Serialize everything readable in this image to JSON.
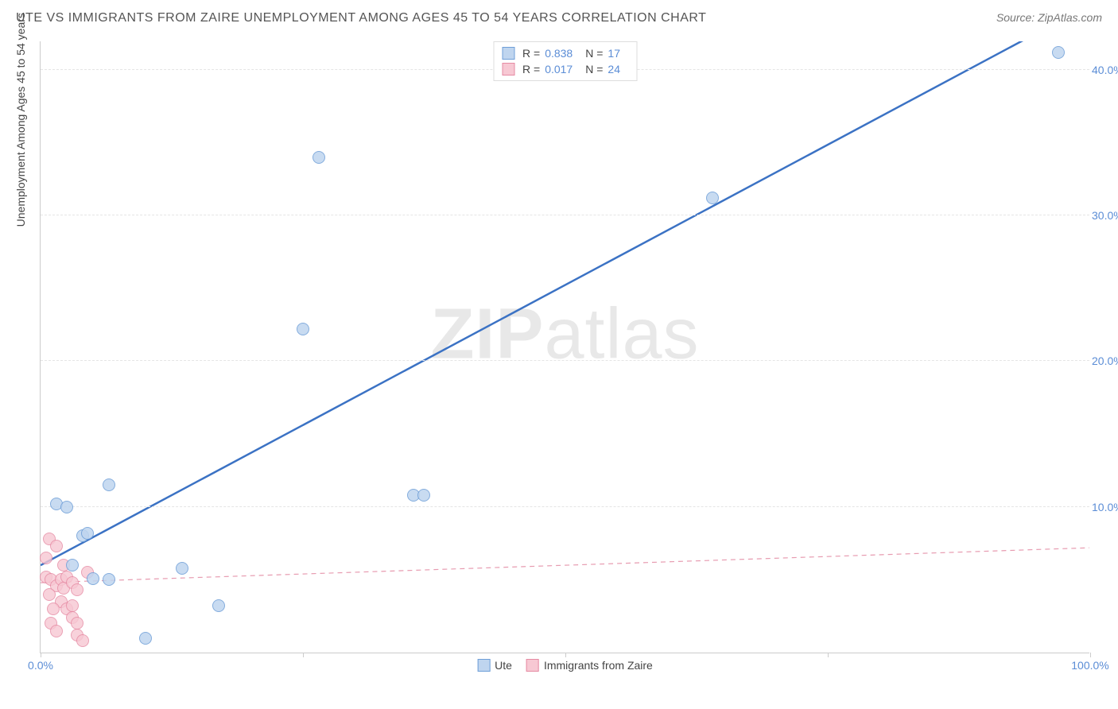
{
  "header": {
    "title": "UTE VS IMMIGRANTS FROM ZAIRE UNEMPLOYMENT AMONG AGES 45 TO 54 YEARS CORRELATION CHART",
    "source": "Source: ZipAtlas.com"
  },
  "watermark": {
    "part1": "ZIP",
    "part2": "atlas"
  },
  "axes": {
    "y_label": "Unemployment Among Ages 45 to 54 years",
    "xlim": [
      0,
      100
    ],
    "ylim": [
      0,
      42
    ],
    "y_ticks": [
      {
        "v": 10,
        "label": "10.0%"
      },
      {
        "v": 20,
        "label": "20.0%"
      },
      {
        "v": 30,
        "label": "30.0%"
      },
      {
        "v": 40,
        "label": "40.0%"
      }
    ],
    "x_ticks_major": [
      0,
      25,
      50,
      75,
      100
    ],
    "x_tick_labels": [
      {
        "v": 0,
        "label": "0.0%"
      },
      {
        "v": 100,
        "label": "100.0%"
      }
    ],
    "tick_color": "#5b8dd6",
    "grid_color": "#e5e5e5"
  },
  "series": {
    "blue": {
      "name": "Ute",
      "marker_fill": "#bfd5ef",
      "marker_stroke": "#6f9fd8",
      "marker_radius": 8,
      "marker_opacity": 0.85,
      "R": "0.838",
      "N": "17",
      "trend": {
        "x1": 0,
        "y1": 6.0,
        "x2": 100,
        "y2": 44.5,
        "color": "#3b72c4",
        "width": 2.5,
        "dash": "none"
      },
      "points": [
        {
          "x": 1.5,
          "y": 10.2
        },
        {
          "x": 2.5,
          "y": 10.0
        },
        {
          "x": 4.0,
          "y": 8.0
        },
        {
          "x": 4.5,
          "y": 8.2
        },
        {
          "x": 6.5,
          "y": 11.5
        },
        {
          "x": 3.0,
          "y": 6.0
        },
        {
          "x": 5.0,
          "y": 5.1
        },
        {
          "x": 6.5,
          "y": 5.0
        },
        {
          "x": 13.5,
          "y": 5.8
        },
        {
          "x": 10.0,
          "y": 1.0
        },
        {
          "x": 17.0,
          "y": 3.2
        },
        {
          "x": 25.0,
          "y": 22.2
        },
        {
          "x": 26.5,
          "y": 34.0
        },
        {
          "x": 35.5,
          "y": 10.8
        },
        {
          "x": 36.5,
          "y": 10.8
        },
        {
          "x": 64.0,
          "y": 31.2
        },
        {
          "x": 97.0,
          "y": 41.2
        }
      ]
    },
    "pink": {
      "name": "Immigrants from Zaire",
      "marker_fill": "#f7c8d3",
      "marker_stroke": "#e68aa3",
      "marker_radius": 8,
      "marker_opacity": 0.8,
      "R": "0.017",
      "N": "24",
      "trend": {
        "x1": 0,
        "y1": 4.8,
        "x2": 100,
        "y2": 7.2,
        "color": "#e79bb0",
        "width": 1.2,
        "dash": "6,5"
      },
      "points": [
        {
          "x": 0.8,
          "y": 7.8
        },
        {
          "x": 1.5,
          "y": 7.3
        },
        {
          "x": 0.5,
          "y": 5.2
        },
        {
          "x": 1.0,
          "y": 5.0
        },
        {
          "x": 1.5,
          "y": 4.6
        },
        {
          "x": 2.0,
          "y": 5.0
        },
        {
          "x": 2.2,
          "y": 4.4
        },
        {
          "x": 2.5,
          "y": 5.2
        },
        {
          "x": 3.0,
          "y": 4.8
        },
        {
          "x": 3.5,
          "y": 4.3
        },
        {
          "x": 2.0,
          "y": 3.5
        },
        {
          "x": 2.5,
          "y": 3.0
        },
        {
          "x": 3.0,
          "y": 3.2
        },
        {
          "x": 3.0,
          "y": 2.4
        },
        {
          "x": 3.5,
          "y": 2.0
        },
        {
          "x": 1.0,
          "y": 2.0
        },
        {
          "x": 1.5,
          "y": 1.5
        },
        {
          "x": 3.5,
          "y": 1.2
        },
        {
          "x": 4.0,
          "y": 0.8
        },
        {
          "x": 0.8,
          "y": 4.0
        },
        {
          "x": 1.2,
          "y": 3.0
        },
        {
          "x": 2.2,
          "y": 6.0
        },
        {
          "x": 0.5,
          "y": 6.5
        },
        {
          "x": 4.5,
          "y": 5.5
        }
      ]
    }
  },
  "legend_top": {
    "rows": [
      {
        "series": "blue",
        "r_label": "R =",
        "n_label": "N ="
      },
      {
        "series": "pink",
        "r_label": "R =",
        "n_label": "N ="
      }
    ]
  },
  "legend_bottom": {
    "items": [
      {
        "series": "blue"
      },
      {
        "series": "pink"
      }
    ]
  }
}
